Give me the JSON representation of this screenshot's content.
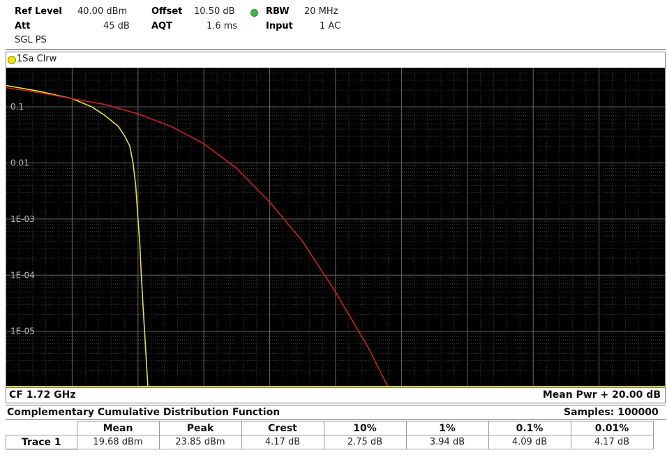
{
  "settings": {
    "ref_level_label": "Ref Level",
    "ref_level_value": "40.00 dBm",
    "offset_label": "Offset",
    "offset_value": "10.50 dB",
    "rbw_label": "RBW",
    "rbw_value": "20 MHz",
    "att_label": "Att",
    "att_value": "45 dB",
    "aqt_label": "AQT",
    "aqt_value": "1.6 ms",
    "input_label": "Input",
    "input_value": "1 AC",
    "sweep_mode": "SGL PS"
  },
  "window": {
    "trace_label": "1Sa Clrw",
    "center_freq": "CF 1.72 GHz",
    "mean_pwr": "Mean Pwr + 20.00 dB"
  },
  "chart_data": {
    "type": "line",
    "y_scale": "log",
    "ylim": [
      1e-06,
      0.5
    ],
    "xlim": [
      0,
      20
    ],
    "ytick_labels": [
      {
        "label": "0.1",
        "value": 0.1
      },
      {
        "label": "0.01",
        "value": 0.01
      },
      {
        "label": "1E-03",
        "value": 0.001
      },
      {
        "label": "1E-04",
        "value": 0.0001
      },
      {
        "label": "1E-05",
        "value": 1e-05
      }
    ],
    "grid": true,
    "series": [
      {
        "color": "#e8e233",
        "x": [
          0.0,
          1.0,
          2.0,
          2.6,
          3.0,
          3.4,
          3.6,
          3.75,
          3.85,
          3.93,
          4.0,
          4.05,
          4.1,
          4.15,
          4.2,
          4.3
        ],
        "y": [
          0.24,
          0.19,
          0.14,
          0.1,
          0.07,
          0.045,
          0.03,
          0.02,
          0.01,
          0.004,
          0.001,
          0.0004,
          0.0001,
          3e-05,
          1e-05,
          1e-06
        ]
      },
      {
        "color": "#cc1f1f",
        "x": [
          0.0,
          1.0,
          2.0,
          3.0,
          4.0,
          5.0,
          6.0,
          7.0,
          8.0,
          9.0,
          10.0,
          11.0,
          11.6
        ],
        "y": [
          0.22,
          0.18,
          0.14,
          0.11,
          0.075,
          0.045,
          0.022,
          0.008,
          0.002,
          0.0004,
          5e-05,
          5e-06,
          1e-06
        ]
      }
    ]
  },
  "ccdf": {
    "title": "Complementary Cumulative Distribution Function",
    "samples": "Samples: 100000",
    "columns": [
      "Mean",
      "Peak",
      "Crest",
      "10%",
      "1%",
      "0.1%",
      "0.01%"
    ],
    "row_label": "Trace 1",
    "values": [
      "19.68 dBm",
      "23.85 dBm",
      "4.17 dB",
      "2.75 dB",
      "3.94 dB",
      "4.09 dB",
      "4.17 dB"
    ]
  }
}
